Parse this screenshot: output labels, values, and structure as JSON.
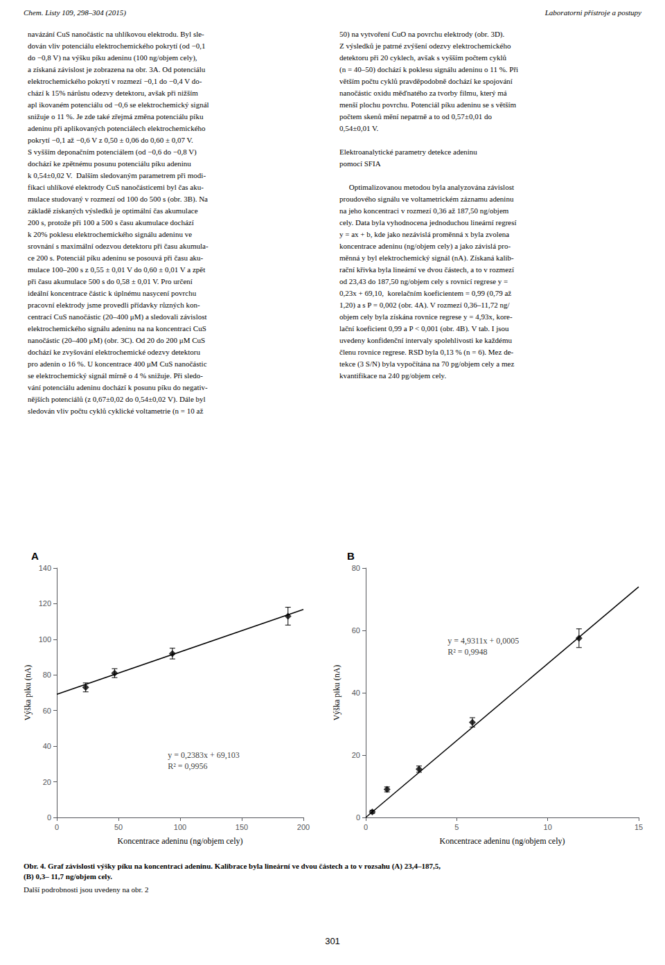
{
  "header_left": "Chem. Listy 109, 298–304 (2015)",
  "header_right": "Laboratorni přístroje a postupy",
  "left_col_text": "navázání CuS nanočástic na uhlíkovou elektrodu. Byl sle-\ndován vliv potenciálu elektrochemického pokrytí (od −0,1\ndo −0,8 V) na výšku píku adeninu (100 ng/objem cely),\na získaná závislost je zobrazena na obr. 3A. Od potenciálu\nelektrochemického pokrytí v rozmezí −0,1 do −0,4 V do-\nchází k 15% nárůstu odezvy detektoru, avšak při nižším\napl ikovaném potenciálu od −0,6 se elektrochemický signál\nsnižuje o 11 %. Je zde také zřejmá změna potenciálu píku\nadeninu při aplikovaných potenciálech elektrochemického\npokrytí −0,1 až −0,6 V z 0,50 ± 0,06 do 0,60 ± 0,07 V.\nS vyšším deponačním potenciálem (od −0,6 do −0,8 V)\ndochází ke zpětnému posunu potenciálu píku adeninu\nk 0,54±0,02 V.  Dalším sledovaným parametrem při modi-\nfikaci uhlíkové elektrody CuS nanočásticemi byl čas aku-\nmulace studovaný v rozmezí od 100 do 500 s (obr. 3B). Na\nzákladě získaných výsledků je optimální čas akumulace\n200 s, protože při 100 a 500 s času akumulace dochází\nk 20% poklesu elektrochemického signálu adeninu ve\nsrovnání s maximální odezvou detektoru při času akumula-\nce 200 s. Potenciál píku adeninu se posouvá při času aku-\nmulace 100–200 s z 0,55 ± 0,01 V do 0,60 ± 0,01 V a zpět\npři času akumulace 500 s do 0,58 ± 0,01 V. Pro určení\nideální koncentrace částic k úplnému nasycení povrchu\npracovní elektrody jsme provedli přídavky různých kon-\ncentrací CuS nanočástic (20–400 μM) a sledovali závislost\nelektrochemického signálu adeninu na na koncentraci CuS\nnanočástic (20–400 μM) (obr. 3C). Od 20 do 200 μM CuS\ndochází ke zvyšování elektrochemické odezvy detektoru\npro adenin o 16 %. U koncentrace 400 μM CuS nanočástic\nse elektrochemický signál mírně o 4 % snižuje. Při sledo-\nvání potenciálu adeninu dochází k posunu píku do negativ-\nnějších potenciálů (z 0,67±0,02 do 0,54±0,02 V). Dále byl\nsledován vliv počtu cyklů cyklické voltametrie (n = 10 až",
  "right_col_text": "50) na vytvoření CuO na povrchu elektrody (obr. 3D).\nZ výsledků je patrné zvýšení odezvy elektrochemického\ndetektoru při 20 cyklech, avšak s vyšším počtem cyklů\n(n = 40–50) dochází k poklesu signálu adeninu o 11 %. Při\nvětším počtu cyklů pravděpodobně dochází ke spojování\nnanočástic oxidu měďnatého za tvorby filmu, který má\nmenší plochu povrchu. Potenciál píku adeninu se s větším\npočtem skenů mění nepatrně a to od 0,57±0,01 do\n0,54±0,01 V.\n\nElektroanalytické parametry detekce adeninu\npomocí SFIA\n\n     Optimalizovanou metodou byla analyzována závislost\nproudového signálu ve voltametrickém záznamu adeninu\nna jeho koncentraci v rozmezí 0,36 až 187,50 ng/objem\ncely. Data byla vyhodnocena jednoduchou lineární regresí\ny = ax + b, kde jako nezávislá proměnná x byla zvolena\nkoncentrace adeninu (ng/objem cely) a jako závislá pro-\nměnná y byl elektrochemický signál (nA). Získaná kalib-\nrační křivka byla lineární ve dvou částech, a to v rozmezí\nod 23,43 do 187,50 ng/objem cely s rovnicí regrese y =\n0,23x + 69,10,  korelačním koeficientem = 0,99 (0,79 až\n1,20) a s P = 0,002 (obr. 4A). V rozmezí 0,36–11,72 ng/\nobjem cely byla získána rovnice regrese y = 4,93x, kore-\nlační koeficient 0,99 a P < 0,001 (obr. 4B). V tab. I jsou\nuvedeny konfidenční intervaly spolehlivosti ke každému\nčlenu rovnice regrese. RSD byla 0,13 % (n = 6). Mez de-\ntekce (3 S/N) byla vypočítána na 70 pg/objem cely a mez\nkvantifikace na 240 pg/objem cely.",
  "caption_bold": "Obr. 4. Graf závislosti výšky píku na koncentraci adeninu. Kalibrace byla lineární ve dvou částech a to v rozsahu (A) 23,4–187,5,\n(B) 0,3– 11,7 ng/objem cely.",
  "caption_normal": "Další podrobnosti jsou uvedeny na obr. 2",
  "page_number": "301",
  "chart_data": [
    {
      "type": "scatter",
      "title": "A",
      "xlabel": "Koncentrace adeninu (ng/objem cely)",
      "ylabel": "Výška piku (nA)",
      "xlim": [
        0,
        200
      ],
      "ylim": [
        0,
        140
      ],
      "xticks": [
        0,
        50,
        100,
        150,
        200
      ],
      "yticks": [
        0,
        20,
        40,
        60,
        80,
        100,
        120,
        140
      ],
      "grid": false,
      "color": "#000000",
      "series": [
        {
          "type": "scatter",
          "marker": "diamond",
          "x": [
            23.43,
            46.88,
            93.75,
            187.5
          ],
          "values": [
            73.0,
            81.0,
            92.0,
            113.0
          ],
          "yerr": [
            2.5,
            2.5,
            3.0,
            5.0
          ]
        },
        {
          "type": "line",
          "x": [
            0,
            200
          ],
          "values": [
            69.103,
            116.763
          ]
        }
      ],
      "annotations": [
        {
          "text": "y = 0,2383x + 69,103\nR² = 0,9956",
          "x": 90,
          "y": 32
        }
      ]
    },
    {
      "type": "scatter",
      "title": "B",
      "xlabel": "Koncentrace adeninu (ng/objem cely)",
      "ylabel": "Výška piku (nA)",
      "xlim": [
        0,
        15
      ],
      "ylim": [
        0,
        80
      ],
      "xticks": [
        0,
        5,
        10,
        15
      ],
      "yticks": [
        0,
        20,
        40,
        60,
        80
      ],
      "grid": false,
      "color": "#000000",
      "series": [
        {
          "type": "scatter",
          "marker": "diamond",
          "x": [
            0.36,
            1.17,
            2.93,
            5.86,
            11.72
          ],
          "values": [
            1.8,
            9.0,
            15.5,
            30.5,
            57.5
          ],
          "yerr": [
            0.5,
            0.8,
            1.0,
            1.5,
            3.0
          ]
        },
        {
          "type": "line",
          "x": [
            0,
            15
          ],
          "values": [
            0.0005,
            73.967
          ]
        }
      ],
      "annotations": [
        {
          "text": "y = 4,9311x + 0,0005\nR² = 0,9948",
          "x": 4.5,
          "y": 55
        }
      ]
    }
  ]
}
